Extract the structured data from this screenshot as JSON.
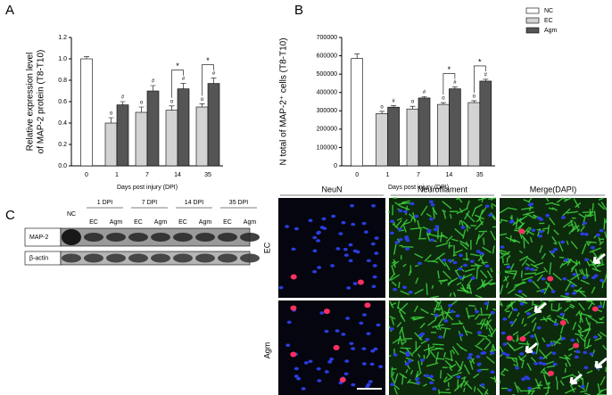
{
  "panel_labels": [
    "A",
    "B",
    "C"
  ],
  "chart_data": [
    {
      "type": "bar",
      "x_label": "Days post injury (DPI)",
      "y_label": [
        "Relative expression level",
        "of MAP-2 protein (T8-T10)"
      ],
      "categories": [
        "0",
        "1",
        "7",
        "14",
        "35"
      ],
      "series": [
        {
          "name": "NC",
          "color": "#ffffff",
          "values": [
            1.0,
            null,
            null,
            null,
            null
          ],
          "errors": [
            0.02,
            null,
            null,
            null,
            null
          ],
          "markers": [
            null,
            null,
            null,
            null,
            null
          ]
        },
        {
          "name": "EC",
          "color": "#d3d3d3",
          "values": [
            null,
            0.4,
            0.5,
            0.52,
            0.55
          ],
          "errors": [
            null,
            0.05,
            0.05,
            0.04,
            0.03
          ],
          "markers": [
            null,
            "o",
            "o",
            "o",
            "o"
          ]
        },
        {
          "name": "Agm",
          "color": "#555555",
          "values": [
            null,
            0.57,
            0.7,
            0.72,
            0.77
          ],
          "errors": [
            null,
            0.03,
            0.05,
            0.05,
            0.05
          ],
          "markers": [
            null,
            "#",
            "#",
            "#",
            "#"
          ]
        }
      ],
      "significance": [
        {
          "category": "14",
          "label": "*"
        },
        {
          "category": "35",
          "label": "*"
        }
      ],
      "ylim": [
        0,
        1.2
      ],
      "yticks": [
        {
          "value": 0,
          "label": "0.0"
        },
        0.2,
        0.4,
        0.6,
        0.8,
        {
          "value": 1,
          "label": "1.0"
        },
        {
          "value": 1.2,
          "label": "1.2"
        }
      ]
    },
    {
      "type": "bar",
      "x_label": "Days post injury (DPI)",
      "y_label": [
        "N total of MAP-2⁺ cells (T8-T10)"
      ],
      "categories": [
        "0",
        "1",
        "7",
        "14",
        "35"
      ],
      "series": [
        {
          "name": "NC",
          "color": "#ffffff",
          "values": [
            585000,
            null,
            null,
            null,
            null
          ],
          "errors": [
            25000,
            null,
            null,
            null,
            null
          ],
          "markers": [
            null,
            null,
            null,
            null,
            null
          ]
        },
        {
          "name": "EC",
          "color": "#d3d3d3",
          "values": [
            null,
            285000,
            310000,
            335000,
            345000
          ],
          "errors": [
            null,
            12000,
            15000,
            10000,
            10000
          ],
          "markers": [
            null,
            "o",
            "o",
            "o",
            "o"
          ]
        },
        {
          "name": "Agm",
          "color": "#555555",
          "values": [
            null,
            320000,
            370000,
            420000,
            462000
          ],
          "errors": [
            null,
            8000,
            8000,
            10000,
            10000
          ],
          "markers": [
            null,
            "#",
            "#",
            "#",
            "#"
          ]
        }
      ],
      "significance": [
        {
          "category": "14",
          "label": "*"
        },
        {
          "category": "35",
          "label": "*"
        }
      ],
      "ylim": [
        0,
        700000
      ],
      "yticks": [
        0,
        100000,
        200000,
        300000,
        400000,
        500000,
        600000,
        700000
      ],
      "legend": "upper right"
    }
  ],
  "blot": {
    "groups": [
      "1 DPI",
      "7 DPI",
      "14 DPI",
      "35 DPI"
    ],
    "lanes": [
      "NC",
      "EC",
      "Agm",
      "EC",
      "Agm",
      "EC",
      "Agm",
      "EC",
      "Agm"
    ],
    "rows": [
      "MAP-2",
      "β-actin"
    ]
  },
  "microscopy": {
    "columns": [
      "NeuN",
      "Neurofilament",
      "Merge(DAPI)"
    ],
    "rows": [
      "EC",
      "Agm"
    ]
  }
}
